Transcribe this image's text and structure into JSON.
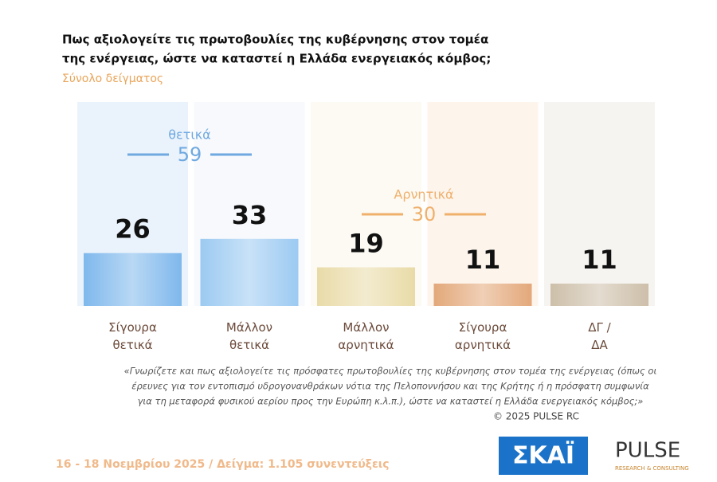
{
  "chart_data": {
    "type": "bar",
    "title": [
      "Πως αξιολογείτε τις πρωτοβουλίες της κυβέρνησης στον τομέα",
      "της ενέργειας, ώστε να καταστεί η Ελλάδα ενεργειακός κόμβος;"
    ],
    "subtitle": "Σύνολο δείγματος",
    "categories": [
      "Σίγουρα\nθετικά",
      "Μάλλον\nθετικά",
      "Μάλλον\nαρνητικά",
      "Σίγουρα\nαρνητικά",
      "ΔΓ /\nΔΑ"
    ],
    "values": [
      26,
      33,
      19,
      11,
      11
    ],
    "colors": [
      "#7fb8ec",
      "#9ccaf2",
      "#e9dba8",
      "#e3a87a",
      "#cdbfa9"
    ],
    "groups": [
      {
        "label": "θετικά",
        "value": 59,
        "color": "#6fa9e0"
      },
      {
        "label": "Αρνητικά",
        "value": 30,
        "color": "#efb06c"
      }
    ],
    "note": [
      "«Γνωρίζετε και πως αξιολογείτε τις πρόσφατες πρωτοβουλίες της κυβέρνησης στον τομέα της ενέργειας (όπως οι",
      "έρευνες για τον εντοπισμό υδρογονανθράκων νότια της Πελοποννήσου και της Κρήτης ή η πρόσφατη συμφωνία",
      "για τη μεταφορά φυσικού αερίου προς την Ευρώπη κ.λ.π.), ώστε να καταστεί η Ελλάδα ενεργειακός κόμβος;»"
    ],
    "copyright": "©  2025  PULSE RC",
    "footer": "16 - 18 Νοεμβρίου 2025  /  Δείγμα:  1.105 συνεντεύξεις",
    "logos": {
      "channel": "ΣΚΑΪ",
      "pollster": "PULSE",
      "pollster_tagline": "RESEARCH & CONSULTING"
    }
  }
}
